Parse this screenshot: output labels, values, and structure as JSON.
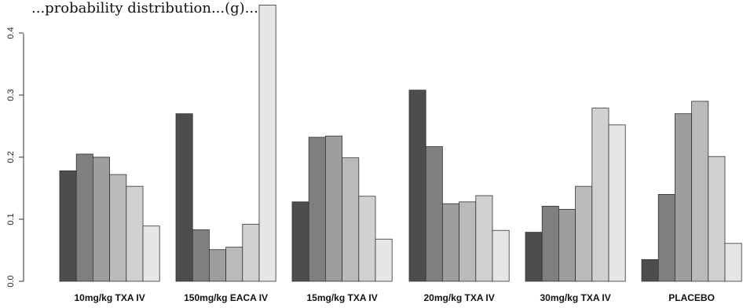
{
  "chart_data": {
    "type": "bar",
    "title": "...probability distribution...(g)...",
    "categories": [
      "10mg/kg TXA IV",
      "150mg/kg EACA IV",
      "15mg/kg TXA IV",
      "20mg/kg TXA IV",
      "30mg/kg TXA IV",
      "PLACEBO"
    ],
    "values_by_group": [
      [
        0.178,
        0.205,
        0.2,
        0.172,
        0.153,
        0.089
      ],
      [
        0.27,
        0.083,
        0.051,
        0.055,
        0.092,
        0.445
      ],
      [
        0.128,
        0.232,
        0.234,
        0.199,
        0.137,
        0.068
      ],
      [
        0.308,
        0.217,
        0.125,
        0.128,
        0.138,
        0.082
      ],
      [
        0.079,
        0.121,
        0.116,
        0.153,
        0.279,
        0.252
      ],
      [
        0.035,
        0.14,
        0.27,
        0.29,
        0.201,
        0.061
      ]
    ],
    "bar_colors": [
      "#4d4d4d",
      "#7f7f7f",
      "#9e9e9e",
      "#bababa",
      "#d1d1d1",
      "#e6e6e6"
    ],
    "yticks": [
      "0.0",
      "0.1",
      "0.2",
      "0.3",
      "0.4"
    ],
    "ylim": [
      0,
      0.45
    ],
    "grid": false,
    "legend": "none"
  }
}
